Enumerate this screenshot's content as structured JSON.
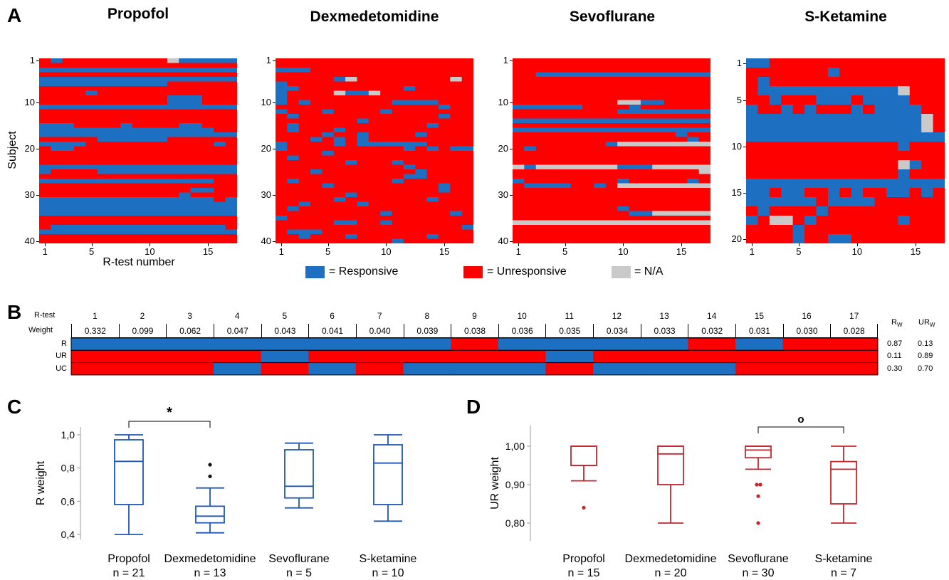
{
  "panels": {
    "a": "A",
    "b": "B",
    "c": "C",
    "d": "D"
  },
  "colors": {
    "responsive": "#1c6fc1",
    "unresponsive": "#ff0000",
    "na": "#c9c9c9",
    "box_c": "#1f57b4",
    "box_d": "#c4262e"
  },
  "legend": {
    "responsive": "= Responsive",
    "unresponsive": "= Unresponsive",
    "na": "= N/A"
  },
  "chart_data": [
    {
      "type": "heatmap",
      "title": "Propofol",
      "ylabel": "Subject",
      "xlabel": "R-test number",
      "xticks": [
        1,
        5,
        10,
        15
      ],
      "yticks": [
        1,
        10,
        20,
        30,
        40
      ],
      "encoding": "R = Responsive, U = Unresponsive, N = N/A",
      "rows": [
        "URUUUUUUUUUNRRRRR",
        "UUUUUUUUUUUUUUUUU",
        "RRRRRRRRRRRRRRRRR",
        "UUUUUUUUUUUUUUUUU",
        "RRRRRRRRRRRRRRRRR",
        "RRRRRRRRRRRUUUUUU",
        "UUUUUUUUUUUUUUUUU",
        "UUUURUUUUUUUUUUUU",
        "UUUUUUUUUUURRRUUU",
        "UUUUUUUUUUURRRUUU",
        "RRRRRRRRRRRRRRRRR",
        "UUUUUUUUUUUUUUUUU",
        "UUUUUUUUUUUUUUUUU",
        "UUUUUUUUUUUUUUUUU",
        "RRRUUUURUUUURRUUU",
        "RRRRRRRRRRRRRRRUU",
        "RRRRRRRRRRRRRRRRR",
        "UUUUURRRRRRUUUUUU",
        "RRRRUUUUUUUUUUURU",
        "URRUUUUUUUUUUUUUU",
        "UUUUUUUUUUUUUUUUU",
        "UUUUUUUUUUUUUUUUU",
        "UUUUUUUUUUUUUUUUU",
        "RRRRRRRRRRRRRRRRR",
        "RUUUURRRRRRRRRRRR",
        "UUUUUUUUUUUUUUUUU",
        "RRRRRRRRRRRRRRRUU",
        "UUUUUUUUUUUUUUUUU",
        "UUUUUUUUUUUUURRUU",
        "UUUUUUUUUUUURUUUU",
        "RRRRRRRRRRRRRRRUR",
        "RRRRRRRRRRRRRRRRR",
        "RRRRRRRRRRRRRRRRR",
        "RRRRRRRRRRRRRRRRR",
        "UUUUUUUUUUUUUUUUU",
        "UUUUUUUUUUUUUUUUU",
        "URRRRRRRRRRRRRRRU",
        "RRRRRRRRRRRRRRRRR",
        "UUUUUUUUUUUUUUUUU",
        "UUUUUUUUUUUUUUUUU"
      ]
    },
    {
      "type": "heatmap",
      "title": "Dexmedetomidine",
      "xticks": [
        1,
        5,
        10,
        15
      ],
      "yticks": [
        1,
        10,
        20,
        30,
        40
      ],
      "rows": [
        "UUUUUUUUUUUUUUUUU",
        "UUUUUUUUUUUUUUUUU",
        "RRRUUUUUUUUUUUUUU",
        "UUUUUUUUUUUUUUUUU",
        "UUUUURNUUUUUUUUNU",
        "RUUUUUUUUUUUUUUUU",
        "RRUUUUUUUUURUUUUU",
        "RUUUUNRRNUUUUUUUU",
        "RUUUUUUUUUUUUUUUU",
        "RURUUUUUUURRRRUUU",
        "UUUUUUUUUUUUUURUU",
        "RUUURUUUURUUUUUUU",
        "URUUUUUUUUUUUURUU",
        "UUUUUUURUUUUUUUUU",
        "URUUUUUUUUUUURUUU",
        "URUUURUUUUUUUUUUU",
        "UUUURUURUUUURUUUU",
        "UUURURURUUUUUUUUU",
        "RUUUURURRRRRRUUUU",
        "RUUUUUUUUUURURURR",
        "UUUURUUUUUUUUUUUU",
        "URUUUUUUUUUUUUUUU",
        "UUUUUURUUURUUUUUU",
        "UUUUUUUUUUURUUUUU",
        "UUURUUUUUUUURUUUU",
        "UUUUUUUUUUURRUUUU",
        "URUUUUUUUURUUUUUU",
        "UUUURUUUUUUUUURUU",
        "UUUUUUUUUUUUUURUU",
        "UUUUUURUUUUUUUUUU",
        "UUUUURUUUUUUURUUU",
        "UURUUUURUUUUUUUUU",
        "URUUUUUUUUUUUUUUU",
        "UUUUUUUUURUUUUURU",
        "RUUUUUUUUUUUUUUUU",
        "UUUUURRUURUUUUUUU",
        "UUUUUUUUUUUUUUUUR",
        "URRRUUUUUUUUUUUUU",
        "UURUUURUUUUUURUUU",
        "UUUUUUUUUURUUUUUU"
      ]
    },
    {
      "type": "heatmap",
      "title": "Sevoflurane",
      "xticks": [
        1,
        5,
        10,
        15
      ],
      "yticks": [
        1,
        10,
        20,
        30,
        40
      ],
      "rows": [
        "UUUUUUUUUUUUUUUUU",
        "UUUUUUUUUUUUUUUUU",
        "UUUUUUUUUUUUUUUUU",
        "UURRRRRRRRRRRRRRR",
        "UUUUUUUUUUUUUUUUU",
        "UUUUUUUUUUUUUUUUU",
        "UUUUUUUUUUUUUUUUU",
        "UUUUUUUUUUUUUUUUU",
        "UUUUUUUUUUUUUUUUU",
        "UUUUUUUUUNNRRUUUU",
        "RRRRRRUUUURUUUUUU",
        "UUUUUUUUURRRRRRRR",
        "UUUUUUUUUUUUUUUUU",
        "RRRRRRRRRRRRRRRRR",
        "UUUUUUUUUUUUUUUUU",
        "RRRRRRRRRRRRRRRRR",
        "UUUUUUUUUUUUUURUU",
        "UUUUUUUUUUUUUUURU",
        "UUUUUUUURNNNNNNNN",
        "URUUUUUUUUUUUUUUU",
        "UUUUUUUUUUUUUUUUU",
        "UUUUUUUUUUUUUUUUU",
        "UUUUUUUUUUUUUUUUU",
        "NRNNNNNNNRRRNNNNN",
        "UUUUUUUUUUUUUUUUN",
        "UUUUUUUUUUUUUUUUU",
        "RUUUUUUUURUUUUURU",
        "URRRRUURUNNNNNNNN",
        "UUUUUUUUUUUUUUUUU",
        "UUUUUUUUUUUUUUUUU",
        "UUUUUUUUUUUUUUUUU",
        "UUUUUUUUUUUUUUUUU",
        "UUUUUUUUURUUUUUUU",
        "UUUUUUUUUURRNNNNN",
        "UUUUUUUUUUUUUUUUU",
        "NNNNNNNNNNNNNNNNN",
        "UUUUUUUUUUUUUUUUU",
        "UUUUUUUUUUUUUUUUU",
        "UUUUUUUUUUUUUUUUU",
        "UUUUUUUUUUUUUUUUU"
      ]
    },
    {
      "type": "heatmap",
      "title": "S-Ketamine",
      "xticks": [
        1,
        5,
        10,
        15
      ],
      "yticks": [
        1,
        5,
        10,
        15,
        20
      ],
      "rows": [
        "RRUUUUUUUUUUUUUUU",
        "UUUUUUURUUUUUUUUU",
        "URUUUUUUUUUUUUUUU",
        "URRRRRRRRRRRRNUUU",
        "UURUUURRRURRRRUUU",
        "RUURURUUURURRRRUU",
        "RRRRRRRRRRRRRRRNU",
        "RRRRRRRRRRRRRRRNU",
        "RRRRRRRRRRRRRRRRR",
        "UUUUUUUUUUUUURUUU",
        "UUUUUUUUUUUUUUUUU",
        "UUUUUUUUUUUUUNRUU",
        "UUUUUUUUUUUUURUUU",
        "RRRRRRRRRRRRRRRRR",
        "RRURRUURURUURRURU",
        "RRRRRRURRRRUUUUUU",
        "URUUUURUUUUUUUUUU",
        "RUNNURUUUUUUURUUU",
        "UUUURUUUUUUUUUUUU",
        "UUUURUURRUUUUUUUU"
      ]
    },
    {
      "type": "table",
      "row_header": "R-test",
      "weight_header": "Weight",
      "tests": [
        "1",
        "2",
        "3",
        "4",
        "5",
        "6",
        "7",
        "8",
        "9",
        "10",
        "11",
        "12",
        "13",
        "14",
        "15",
        "16",
        "17"
      ],
      "weights": [
        "0.332",
        "0.099",
        "0.062",
        "0.047",
        "0.043",
        "0.041",
        "0.040",
        "0.039",
        "0.038",
        "0.036",
        "0.035",
        "0.034",
        "0.033",
        "0.032",
        "0.031",
        "0.030",
        "0.028"
      ],
      "rw_header": {
        "main": "R",
        "sub": "W"
      },
      "urw_header": {
        "main": "UR",
        "sub": "W"
      },
      "rows": [
        {
          "label": "R",
          "pattern": "RRRRRRRRURRRRURUU",
          "rw": "0.87",
          "urw": "0.13"
        },
        {
          "label": "UR",
          "pattern": "UUUURUUUUURUUUUUU",
          "rw": "0.11",
          "urw": "0.89"
        },
        {
          "label": "UC",
          "pattern": "UUURURURRRURRRUUU",
          "rw": "0.30",
          "urw": "0.70"
        }
      ]
    },
    {
      "type": "box",
      "ylabel": "R weight",
      "ylim": [
        0.4,
        1.0
      ],
      "yticks": [
        1.0,
        0.8,
        0.6,
        0.4
      ],
      "ytick_labels": [
        "1,0",
        "0,8",
        "0,6",
        "0,4"
      ],
      "groups": [
        {
          "name": "Propofol",
          "n": "n = 21",
          "min": 0.4,
          "q1": 0.58,
          "median": 0.84,
          "q3": 0.97,
          "max": 1.0,
          "outliers": []
        },
        {
          "name": "Dexmedetomidine",
          "n": "n = 13",
          "min": 0.41,
          "q1": 0.47,
          "median": 0.51,
          "q3": 0.57,
          "max": 0.68,
          "outliers": [
            0.75,
            0.82
          ]
        },
        {
          "name": "Sevoflurane",
          "n": "n = 5",
          "min": 0.56,
          "q1": 0.62,
          "median": 0.69,
          "q3": 0.91,
          "max": 0.95,
          "outliers": []
        },
        {
          "name": "S-ketamine",
          "n": "n = 10",
          "min": 0.48,
          "q1": 0.58,
          "median": 0.83,
          "q3": 0.94,
          "max": 1.0,
          "outliers": []
        }
      ],
      "significance": {
        "from": 0,
        "to": 1,
        "label": "*"
      }
    },
    {
      "type": "box",
      "ylabel": "UR weight",
      "ylim": [
        0.78,
        1.04
      ],
      "yticks": [
        1.0,
        0.9,
        0.8
      ],
      "ytick_labels": [
        "1,00",
        "0,90",
        "0,80"
      ],
      "groups": [
        {
          "name": "Propofol",
          "n": "n = 15",
          "min": 0.91,
          "q1": 0.95,
          "median": 0.95,
          "q3": 1.0,
          "max": 1.0,
          "outliers": [
            0.84
          ]
        },
        {
          "name": "Dexmedetomidine",
          "n": "n = 20",
          "min": 0.8,
          "q1": 0.9,
          "median": 0.98,
          "q3": 1.0,
          "max": 1.0,
          "outliers": []
        },
        {
          "name": "Sevoflurane",
          "n": "n = 30",
          "min": 0.94,
          "q1": 0.97,
          "median": 0.99,
          "q3": 1.0,
          "max": 1.0,
          "outliers": [
            0.9,
            0.9,
            0.87,
            0.8
          ]
        },
        {
          "name": "S-ketamine",
          "n": "n = 7",
          "min": 0.8,
          "q1": 0.85,
          "median": 0.94,
          "q3": 0.96,
          "max": 1.0,
          "outliers": []
        }
      ],
      "significance": {
        "from": 2,
        "to": 3,
        "label": "o"
      }
    }
  ]
}
